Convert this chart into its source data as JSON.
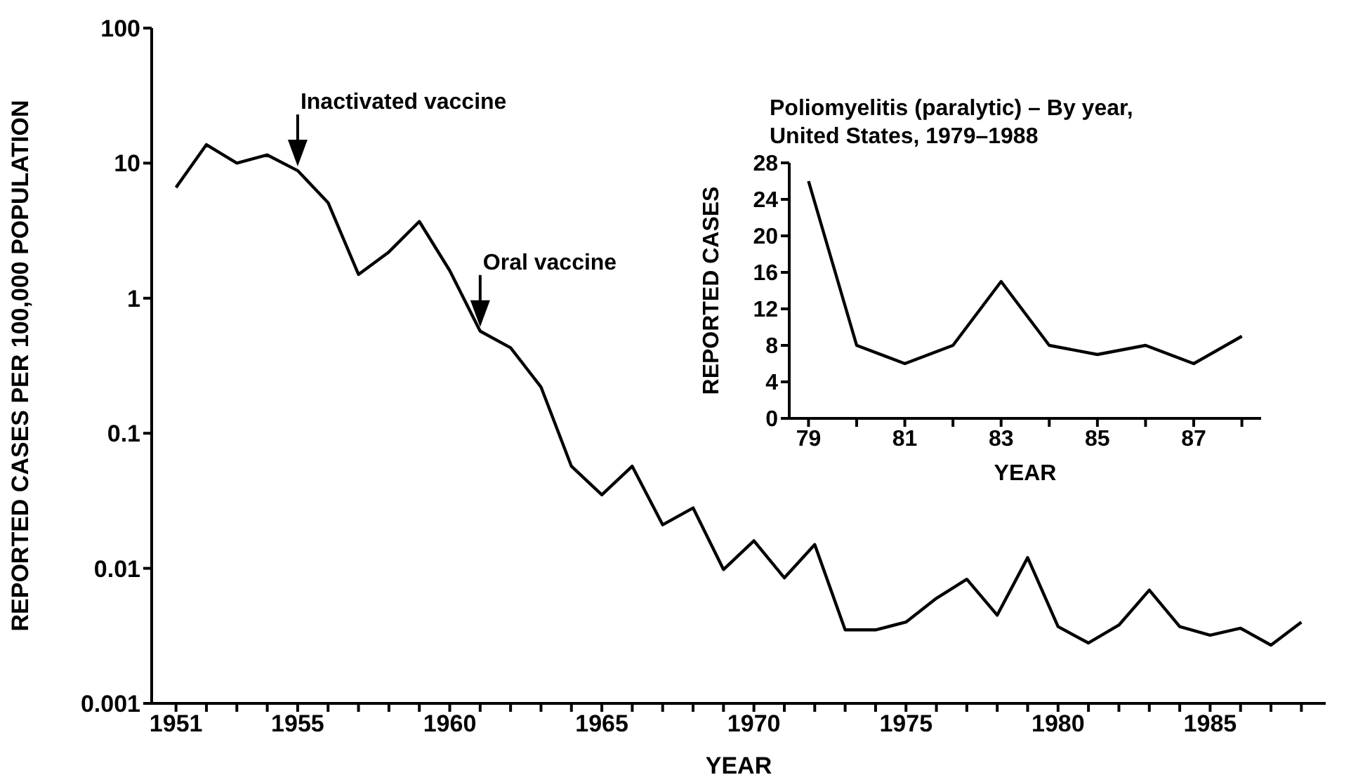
{
  "chart_data": [
    {
      "type": "line",
      "xlabel": "YEAR",
      "ylabel": "REPORTED CASES PER 100,000 POPULATION",
      "log": "y",
      "x": [
        1951,
        1952,
        1953,
        1954,
        1955,
        1956,
        1957,
        1958,
        1959,
        1960,
        1961,
        1962,
        1963,
        1964,
        1965,
        1966,
        1967,
        1968,
        1969,
        1970,
        1971,
        1972,
        1973,
        1974,
        1975,
        1976,
        1977,
        1978,
        1979,
        1980,
        1981,
        1982,
        1983,
        1984,
        1985,
        1986,
        1987,
        1988
      ],
      "series": [
        {
          "color": "#000000",
          "values": [
            6.6,
            13.7,
            10,
            11.5,
            8.8,
            5.1,
            1.5,
            2.2,
            3.7,
            1.6,
            0.57,
            0.43,
            0.22,
            0.057,
            0.035,
            0.057,
            0.021,
            0.028,
            0.0098,
            0.016,
            0.0085,
            0.015,
            0.0035,
            0.0035,
            0.004,
            0.006,
            0.0083,
            0.0045,
            0.012,
            0.0037,
            0.0028,
            0.0038,
            0.0069,
            0.0037,
            0.0032,
            0.0036,
            0.0027,
            0.004
          ]
        }
      ],
      "xlim": [
        1950.2,
        1988.8
      ],
      "xticks": [
        1951,
        {
          "value": 1952,
          "label": null
        },
        {
          "value": 1953,
          "label": null
        },
        {
          "value": 1954,
          "label": null
        },
        1955,
        {
          "value": 1956,
          "label": null
        },
        {
          "value": 1957,
          "label": null
        },
        {
          "value": 1958,
          "label": null
        },
        {
          "value": 1959,
          "label": null
        },
        1960,
        {
          "value": 1961,
          "label": null
        },
        {
          "value": 1962,
          "label": null
        },
        {
          "value": 1963,
          "label": null
        },
        {
          "value": 1964,
          "label": null
        },
        1965,
        {
          "value": 1966,
          "label": null
        },
        {
          "value": 1967,
          "label": null
        },
        {
          "value": 1968,
          "label": null
        },
        {
          "value": 1969,
          "label": null
        },
        1970,
        {
          "value": 1971,
          "label": null
        },
        {
          "value": 1972,
          "label": null
        },
        {
          "value": 1973,
          "label": null
        },
        {
          "value": 1974,
          "label": null
        },
        1975,
        {
          "value": 1976,
          "label": null
        },
        {
          "value": 1977,
          "label": null
        },
        {
          "value": 1978,
          "label": null
        },
        {
          "value": 1979,
          "label": null
        },
        1980,
        {
          "value": 1981,
          "label": null
        },
        {
          "value": 1982,
          "label": null
        },
        {
          "value": 1983,
          "label": null
        },
        {
          "value": 1984,
          "label": null
        },
        1985,
        {
          "value": 1986,
          "label": null
        },
        {
          "value": 1987,
          "label": null
        },
        {
          "value": 1988,
          "label": null
        }
      ],
      "ylim": [
        0.001,
        100
      ],
      "yticks": [
        0.001,
        0.01,
        0.1,
        1,
        10,
        100
      ],
      "annotations": [
        {
          "text": "Inactivated vaccine",
          "x": 1955,
          "y": 8.8
        },
        {
          "text": "Oral vaccine",
          "x": 1961,
          "y": 0.57
        }
      ]
    },
    {
      "type": "line",
      "title": "Poliomyelitis (paralytic) – By year, United States, 1979–1988",
      "xlabel": "YEAR",
      "ylabel": "REPORTED CASES",
      "x": [
        79,
        80,
        81,
        82,
        83,
        84,
        85,
        86,
        87,
        88
      ],
      "series": [
        {
          "color": "#000000",
          "values": [
            26,
            8,
            6,
            8,
            15,
            8,
            7,
            8,
            6,
            9
          ]
        }
      ],
      "xlim": [
        78.6,
        88.4
      ],
      "xticks": [
        79,
        {
          "value": 80,
          "label": null
        },
        81,
        {
          "value": 82,
          "label": null
        },
        83,
        {
          "value": 84,
          "label": null
        },
        85,
        {
          "value": 86,
          "label": null
        },
        87,
        {
          "value": 88,
          "label": null
        }
      ],
      "ylim": [
        0,
        28
      ],
      "yticks": [
        0,
        4,
        8,
        12,
        16,
        20,
        24,
        28
      ]
    }
  ]
}
